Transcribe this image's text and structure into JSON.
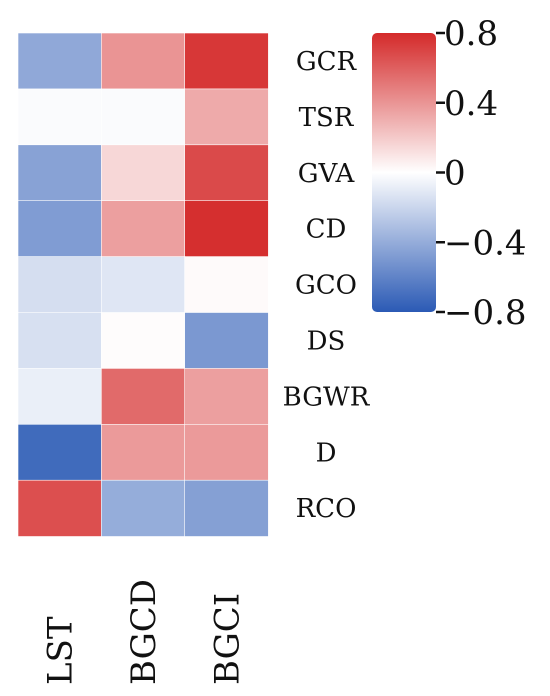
{
  "chart_data": {
    "type": "heatmap",
    "title": "",
    "xlabel": "",
    "ylabel": "",
    "x_categories": [
      "LST",
      "BGCD",
      "BGCI"
    ],
    "y_categories": [
      "GCR",
      "TSR",
      "GVA",
      "CD",
      "GCO",
      "DS",
      "BGWR",
      "D",
      "RCO"
    ],
    "values": [
      [
        -0.42,
        0.4,
        0.75
      ],
      [
        -0.02,
        -0.02,
        0.32
      ],
      [
        -0.45,
        0.15,
        0.68
      ],
      [
        -0.48,
        0.36,
        0.78
      ],
      [
        -0.16,
        -0.12,
        0.02
      ],
      [
        -0.15,
        0.01,
        -0.5
      ],
      [
        -0.08,
        0.56,
        0.36
      ],
      [
        -0.72,
        0.38,
        0.38
      ],
      [
        0.66,
        -0.4,
        -0.46
      ]
    ],
    "colorbar": {
      "range": [
        -0.8,
        0.8
      ],
      "ticks": [
        0.8,
        0.4,
        0,
        -0.4,
        -0.8
      ],
      "tick_labels": [
        "0.8",
        "0.4",
        "0",
        "−0.4",
        "−0.8"
      ],
      "colors": [
        "#2b5ab5",
        "#ffffff",
        "#d42a2a"
      ]
    },
    "grid": false,
    "legend": "colorbar top-right"
  }
}
